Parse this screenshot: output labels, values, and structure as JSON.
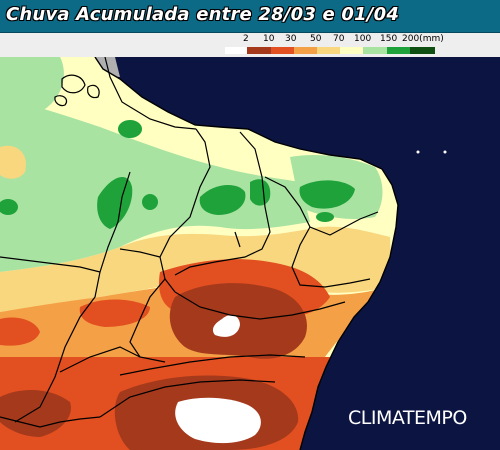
{
  "header": {
    "title": "Chuva Acumulada entre 28/03 e 01/04"
  },
  "legend": {
    "unit": "(mm)",
    "labels": [
      "2",
      "10",
      "30",
      "50",
      "70",
      "100",
      "150",
      "200(mm)"
    ],
    "bins": [
      {
        "label": "< 2",
        "color": "#ffffff"
      },
      {
        "label": "2-10",
        "color": "#a5391c"
      },
      {
        "label": "10-30",
        "color": "#e24f20"
      },
      {
        "label": "30-50",
        "color": "#f4a046"
      },
      {
        "label": "50-70",
        "color": "#f8d77f"
      },
      {
        "label": "70-100",
        "color": "#ffffc2"
      },
      {
        "label": "100-150",
        "color": "#a8e3a2"
      },
      {
        "label": "150-200",
        "color": "#1fa23a"
      },
      {
        "label": "> 200",
        "color": "#0f4f12"
      }
    ]
  },
  "map": {
    "ocean_color": "#0c1442",
    "region": "Nordeste do Brasil"
  },
  "watermark": "CLIMATEMPO"
}
